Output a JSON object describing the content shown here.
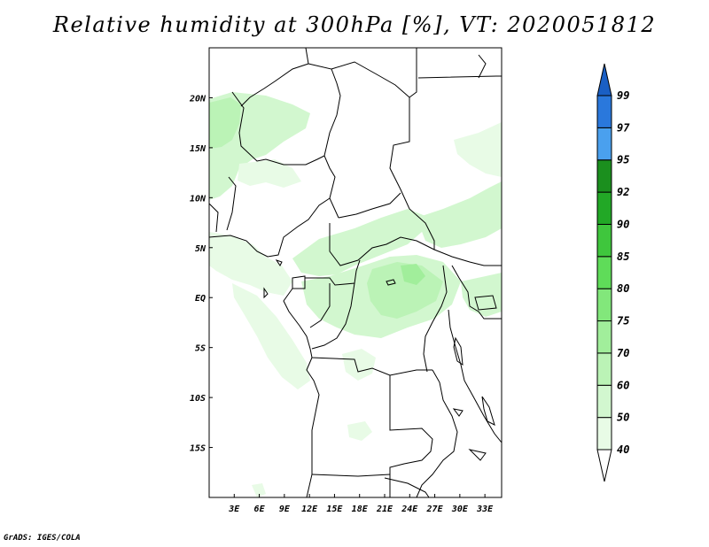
{
  "title": "Relative humidity at 300hPa [%], VT: 2020051812",
  "credit": "GrADS: IGES/COLA",
  "map": {
    "lon_range": [
      0,
      35
    ],
    "lat_range": [
      -20,
      25
    ],
    "lon_ticks": [
      "3E",
      "6E",
      "9E",
      "12E",
      "15E",
      "18E",
      "21E",
      "24E",
      "27E",
      "30E",
      "33E"
    ],
    "lat_ticks": [
      "20N",
      "15N",
      "10N",
      "5N",
      "EQ",
      "5S",
      "10S",
      "15S"
    ]
  },
  "colorbar": {
    "levels": [
      "40",
      "50",
      "60",
      "70",
      "75",
      "80",
      "85",
      "90",
      "92",
      "95",
      "97",
      "99"
    ],
    "colors": [
      "#ffffff",
      "#e8fbe6",
      "#d2f7cf",
      "#bbf3b6",
      "#a1ee9b",
      "#82e77b",
      "#5fdc59",
      "#3fc63d",
      "#22a826",
      "#1b8f1e",
      "#4aa0ee",
      "#2a78dc",
      "#1a5fc4"
    ]
  }
}
